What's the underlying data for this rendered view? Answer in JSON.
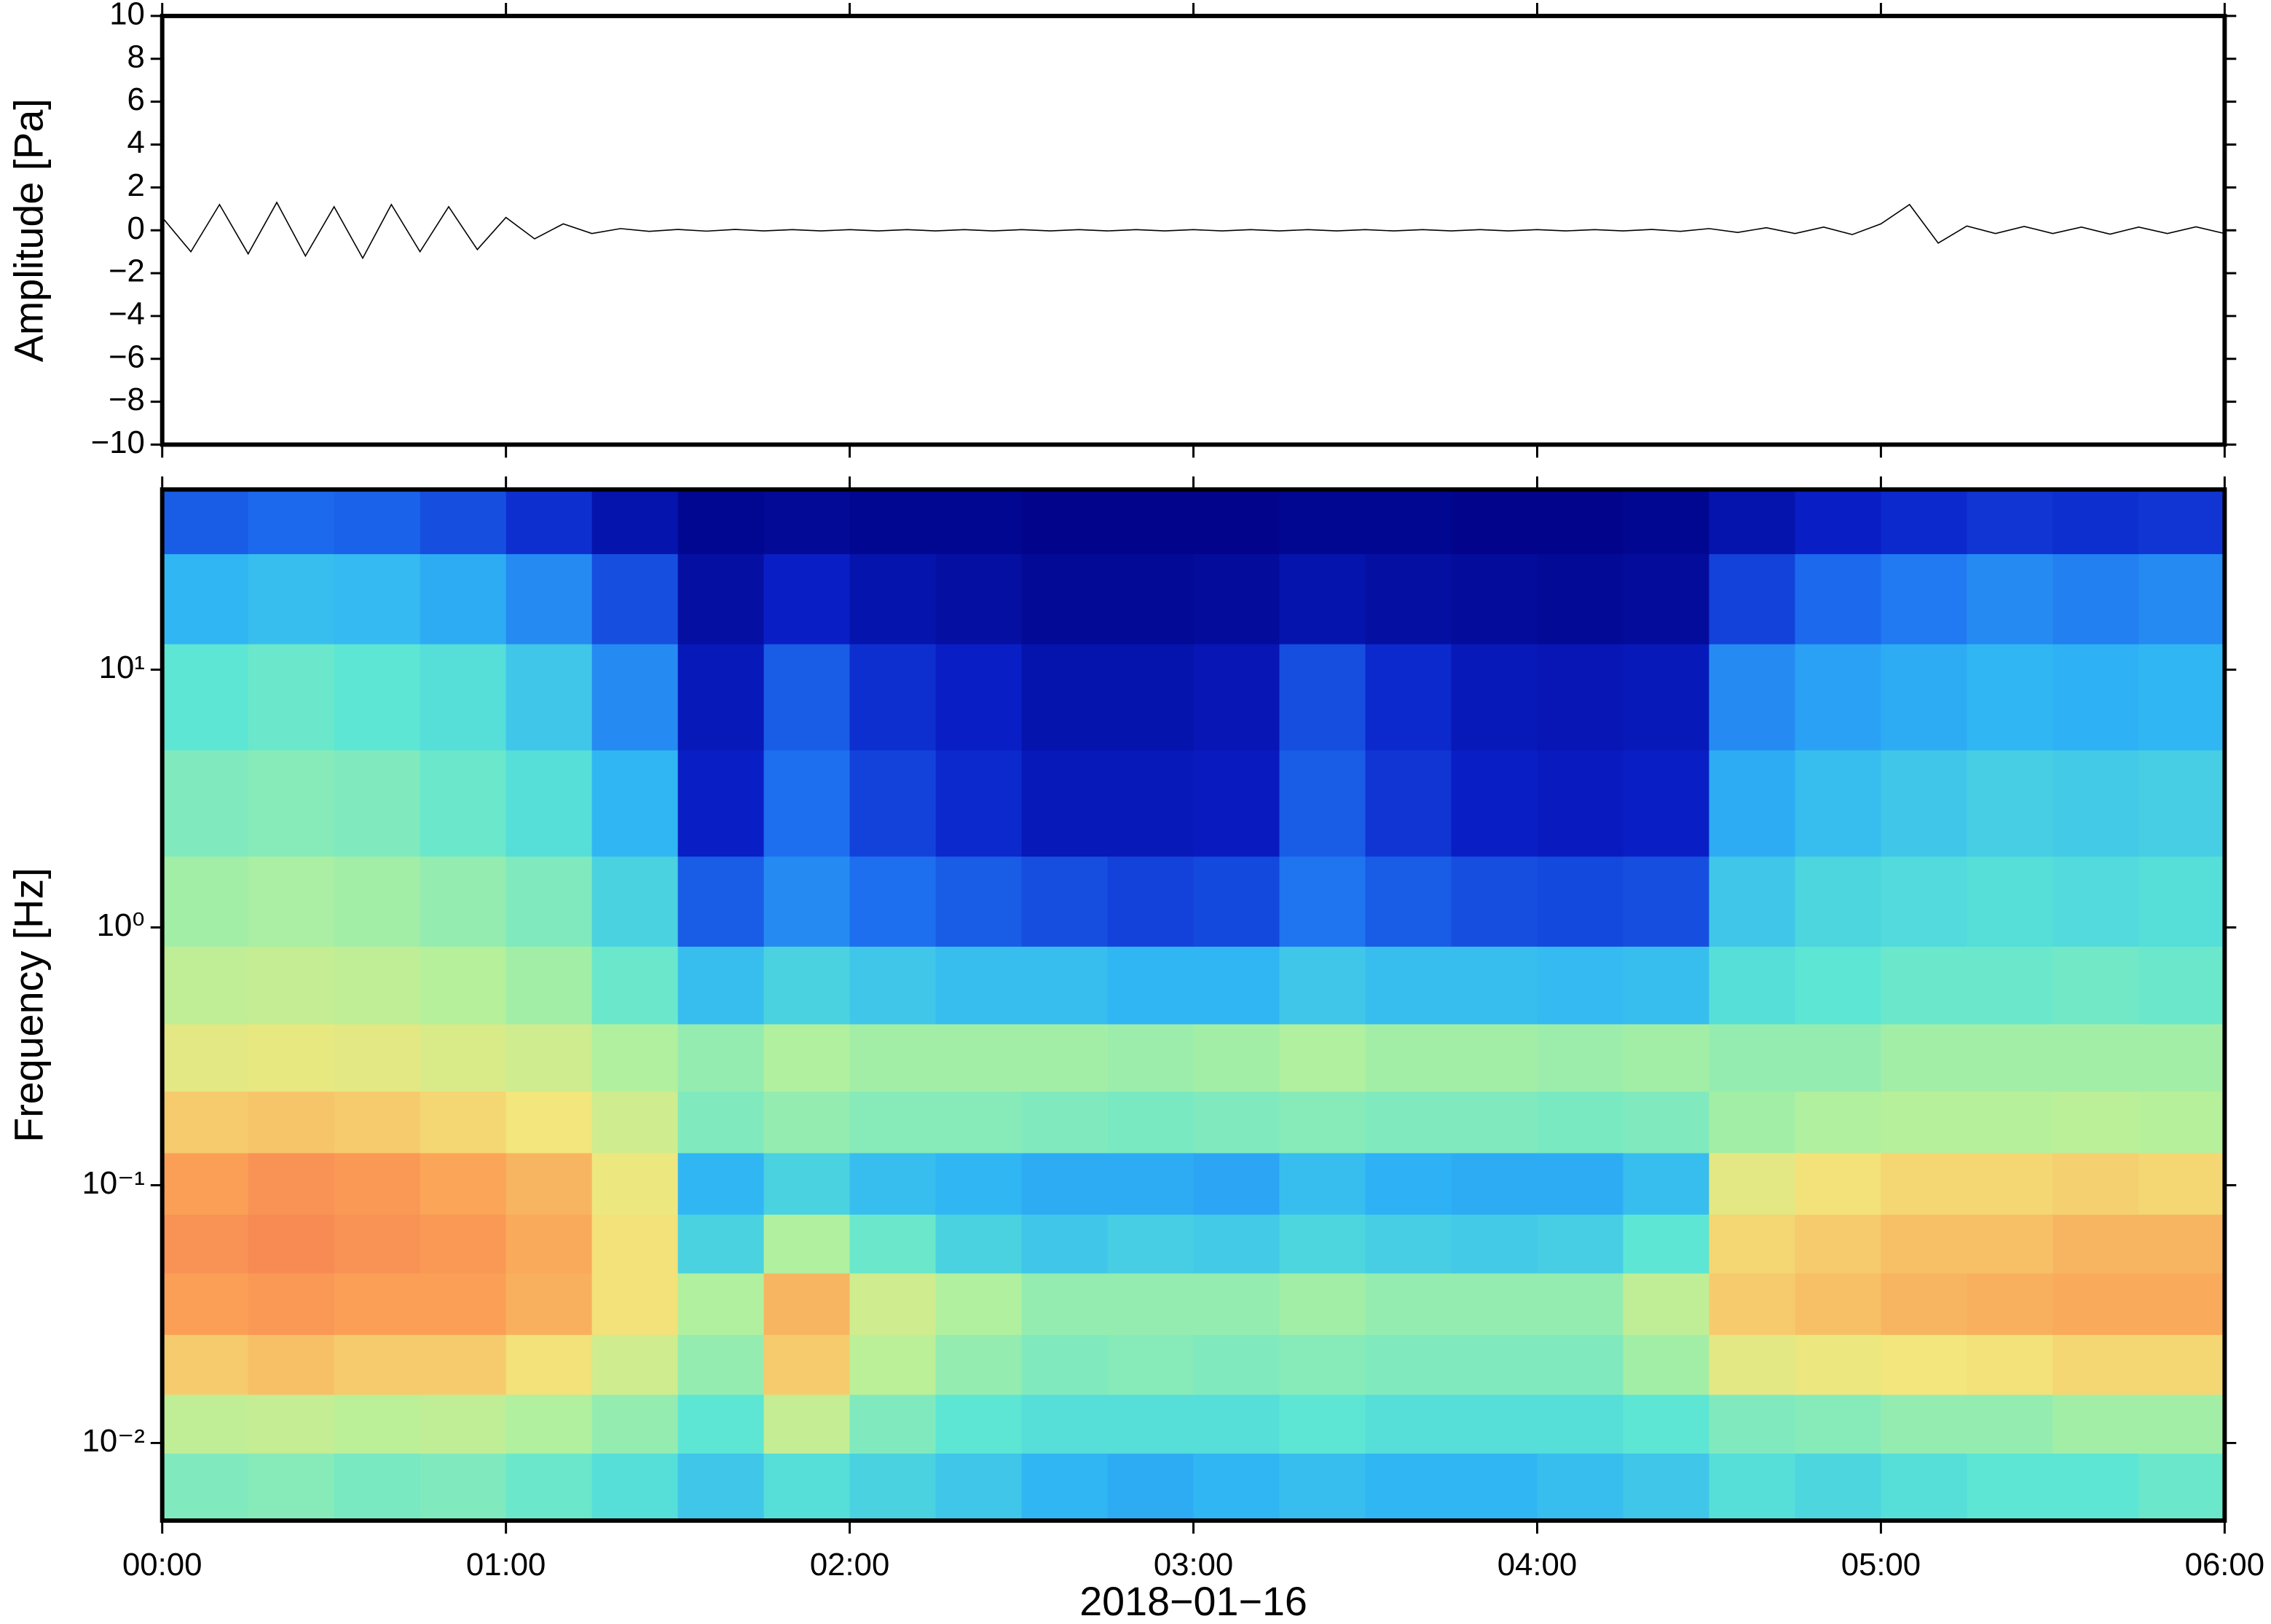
{
  "chart_data": [
    {
      "type": "line",
      "ylabel": "Amplitude [Pa]",
      "color": "#000000",
      "x": [
        0,
        5,
        10,
        15,
        20,
        25,
        30,
        35,
        40,
        45,
        50,
        55,
        60,
        65,
        70,
        75,
        80,
        85,
        90,
        95,
        100,
        105,
        110,
        115,
        120,
        125,
        130,
        135,
        140,
        145,
        150,
        155,
        160,
        165,
        170,
        175,
        180,
        185,
        190,
        195,
        200,
        205,
        210,
        215,
        220,
        225,
        230,
        235,
        240,
        245,
        250,
        255,
        260,
        265,
        270,
        275,
        280,
        285,
        290,
        295,
        300,
        305,
        310,
        315,
        320,
        325,
        330,
        335,
        340,
        345,
        350,
        355,
        360
      ],
      "values": [
        0.6,
        -1.0,
        1.2,
        -1.1,
        1.3,
        -1.2,
        1.1,
        -1.3,
        1.2,
        -1.0,
        1.1,
        -0.9,
        0.6,
        -0.4,
        0.3,
        -0.15,
        0.08,
        -0.05,
        0.04,
        -0.04,
        0.04,
        -0.03,
        0.03,
        -0.03,
        0.03,
        -0.03,
        0.03,
        -0.03,
        0.03,
        -0.03,
        0.03,
        -0.03,
        0.03,
        -0.03,
        0.03,
        -0.03,
        0.03,
        -0.03,
        0.03,
        -0.03,
        0.03,
        -0.03,
        0.03,
        -0.03,
        0.03,
        -0.03,
        0.03,
        -0.03,
        0.03,
        -0.03,
        0.03,
        -0.03,
        0.04,
        -0.05,
        0.08,
        -0.1,
        0.12,
        -0.15,
        0.15,
        -0.2,
        0.3,
        1.2,
        -0.6,
        0.2,
        -0.15,
        0.18,
        -0.15,
        0.15,
        -0.18,
        0.15,
        -0.15,
        0.16,
        -0.15
      ],
      "xlim": [
        0,
        360
      ],
      "ylim": [
        -10,
        10
      ],
      "yticks": [
        {
          "value": -10,
          "label": "−10"
        },
        {
          "value": -8,
          "label": "−8"
        },
        {
          "value": -6,
          "label": "−6"
        },
        {
          "value": -4,
          "label": "−4"
        },
        {
          "value": -2,
          "label": "−2"
        },
        0,
        2,
        4,
        6,
        8,
        10
      ]
    },
    {
      "type": "heatmap",
      "ylabel": "Frequency [Hz]",
      "xlabel": "2018−01−16",
      "x": [
        7.5,
        22.5,
        37.5,
        52.5,
        67.5,
        82.5,
        97.5,
        112.5,
        127.5,
        142.5,
        157.5,
        172.5,
        187.5,
        202.5,
        217.5,
        232.5,
        247.5,
        262.5,
        277.5,
        292.5,
        307.5,
        322.5,
        337.5,
        352.5
      ],
      "y": [
        0.007,
        0.012,
        0.02,
        0.035,
        0.06,
        0.1,
        0.18,
        0.3,
        0.6,
        1.2,
        3,
        8,
        20,
        40
      ],
      "z": [
        [
          55,
          56,
          54,
          55,
          52,
          48,
          42,
          48,
          45,
          42,
          38,
          36,
          38,
          40,
          38,
          38,
          40,
          42,
          48,
          46,
          48,
          50,
          50,
          52
        ],
        [
          65,
          66,
          64,
          65,
          62,
          58,
          50,
          66,
          55,
          50,
          48,
          48,
          48,
          50,
          48,
          48,
          48,
          50,
          55,
          56,
          58,
          58,
          60,
          60
        ],
        [
          80,
          82,
          80,
          80,
          76,
          68,
          58,
          80,
          64,
          58,
          55,
          56,
          55,
          56,
          55,
          55,
          55,
          60,
          72,
          74,
          75,
          76,
          78,
          78
        ],
        [
          88,
          89,
          88,
          88,
          85,
          76,
          62,
          84,
          68,
          62,
          58,
          58,
          58,
          60,
          58,
          58,
          58,
          65,
          80,
          82,
          84,
          85,
          86,
          86
        ],
        [
          90,
          91,
          90,
          89,
          86,
          76,
          45,
          62,
          52,
          45,
          42,
          44,
          43,
          46,
          44,
          43,
          44,
          50,
          78,
          80,
          82,
          82,
          84,
          84
        ],
        [
          88,
          90,
          89,
          87,
          84,
          74,
          38,
          45,
          40,
          38,
          36,
          36,
          35,
          40,
          37,
          36,
          36,
          40,
          72,
          76,
          78,
          78,
          79,
          78
        ],
        [
          80,
          81,
          80,
          78,
          75,
          68,
          55,
          58,
          56,
          56,
          55,
          54,
          55,
          56,
          55,
          55,
          54,
          55,
          60,
          62,
          63,
          63,
          64,
          63
        ],
        [
          72,
          73,
          72,
          70,
          68,
          62,
          58,
          62,
          60,
          60,
          60,
          59,
          60,
          62,
          60,
          60,
          59,
          60,
          58,
          58,
          60,
          60,
          60,
          60
        ],
        [
          65,
          66,
          65,
          63,
          60,
          52,
          40,
          45,
          42,
          40,
          40,
          38,
          38,
          42,
          40,
          40,
          39,
          40,
          48,
          50,
          52,
          52,
          53,
          52
        ],
        [
          60,
          61,
          60,
          58,
          55,
          45,
          22,
          30,
          25,
          22,
          20,
          18,
          19,
          26,
          22,
          20,
          19,
          20,
          42,
          46,
          47,
          48,
          47,
          48
        ],
        [
          55,
          56,
          55,
          52,
          48,
          38,
          12,
          25,
          18,
          14,
          10,
          10,
          11,
          22,
          16,
          12,
          11,
          12,
          36,
          40,
          42,
          44,
          43,
          44
        ],
        [
          50,
          52,
          50,
          48,
          42,
          30,
          10,
          22,
          15,
          12,
          8,
          8,
          9,
          20,
          14,
          10,
          9,
          10,
          30,
          34,
          36,
          38,
          37,
          38
        ],
        [
          38,
          40,
          39,
          36,
          30,
          20,
          6,
          12,
          8,
          6,
          4,
          4,
          5,
          8,
          6,
          5,
          4,
          5,
          18,
          24,
          27,
          30,
          28,
          30
        ],
        [
          22,
          24,
          23,
          20,
          15,
          8,
          3,
          4,
          3,
          3,
          2,
          2,
          2,
          3,
          3,
          2,
          2,
          3,
          8,
          12,
          14,
          16,
          15,
          16
        ]
      ],
      "zlim": [
        0,
        100
      ],
      "colorscale": [
        "#00007f",
        "#0a1fc8",
        "#1e6ff0",
        "#2fb4f5",
        "#5de6d4",
        "#b4f09c",
        "#f2e67c",
        "#fba257",
        "#f0504e"
      ],
      "ylog": true,
      "ylim": [
        0.005,
        50
      ],
      "yticks": [
        {
          "value": 0.01,
          "label": "10⁻²"
        },
        {
          "value": 0.1,
          "label": "10⁻¹"
        },
        {
          "value": 1,
          "label": "10⁰"
        },
        {
          "value": 10,
          "label": "10¹"
        }
      ],
      "xlim": [
        0,
        360
      ],
      "xticks": [
        {
          "value": 0,
          "label": "00:00"
        },
        {
          "value": 60,
          "label": "01:00"
        },
        {
          "value": 120,
          "label": "02:00"
        },
        {
          "value": 180,
          "label": "03:00"
        },
        {
          "value": 240,
          "label": "04:00"
        },
        {
          "value": 300,
          "label": "05:00"
        },
        {
          "value": 360,
          "label": "06:00"
        }
      ]
    }
  ]
}
